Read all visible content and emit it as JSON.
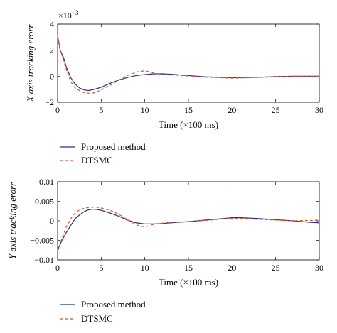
{
  "chart_data": [
    {
      "type": "line",
      "ylabel": "X axis tracking erorr",
      "xlabel": "Time (×100 ms)",
      "exponent_label": "×10",
      "exponent_power": "−3",
      "xlim": [
        0,
        30
      ],
      "ylim": [
        -2,
        4
      ],
      "xticks": [
        0,
        5,
        10,
        15,
        20,
        25,
        30
      ],
      "yticks": [
        -2,
        0,
        2,
        4
      ],
      "ytick_labels": [
        "−2",
        "0",
        "2",
        "4"
      ],
      "grid": false,
      "legend_position": "below",
      "series": [
        {
          "name": "Proposed method",
          "color": "#2b2f8f",
          "dash": "solid",
          "x": [
            0,
            0.3,
            0.7,
            1,
            1.5,
            2,
            2.5,
            3,
            3.5,
            4,
            4.5,
            5,
            6,
            7,
            8,
            9,
            10,
            11,
            12,
            13,
            15,
            17,
            20,
            23,
            25,
            27,
            30
          ],
          "y": [
            3.1,
            2.0,
            1.4,
            0.7,
            -0.1,
            -0.6,
            -0.9,
            -1.05,
            -1.1,
            -1.05,
            -0.95,
            -0.85,
            -0.55,
            -0.3,
            -0.1,
            0.05,
            0.12,
            0.18,
            0.18,
            0.15,
            0.05,
            -0.05,
            -0.12,
            -0.08,
            -0.03,
            0.0,
            0.0
          ]
        },
        {
          "name": "DTSMC",
          "color": "#e0512b",
          "dash": "dashed",
          "x": [
            0,
            0.3,
            0.7,
            1,
            1.5,
            2,
            2.5,
            3,
            3.5,
            4,
            4.5,
            5,
            6,
            7,
            8,
            9,
            9.5,
            10,
            10.5,
            11,
            12,
            13,
            15,
            17,
            20,
            23,
            25,
            27,
            30
          ],
          "y": [
            3.2,
            2.0,
            1.2,
            0.5,
            -0.4,
            -0.9,
            -1.1,
            -1.25,
            -1.3,
            -1.3,
            -1.2,
            -1.05,
            -0.7,
            -0.3,
            0.05,
            0.3,
            0.38,
            0.4,
            0.35,
            0.25,
            0.12,
            0.1,
            0.02,
            -0.08,
            -0.15,
            -0.1,
            -0.05,
            0.0,
            0.0
          ]
        }
      ]
    },
    {
      "type": "line",
      "ylabel": "Y axis tracking erorr",
      "xlabel": "Time (×100 ms)",
      "xlim": [
        0,
        30
      ],
      "ylim": [
        -0.01,
        0.01
      ],
      "xticks": [
        0,
        5,
        10,
        15,
        20,
        25,
        30
      ],
      "yticks": [
        -0.01,
        -0.005,
        0,
        0.005,
        0.01
      ],
      "ytick_labels": [
        "−0.01",
        "−0.005",
        "0",
        "0.005",
        "0.01"
      ],
      "grid": false,
      "legend_position": "below",
      "series": [
        {
          "name": "Proposed method",
          "color": "#2b2f8f",
          "dash": "solid",
          "x": [
            0,
            0.5,
            1,
            1.5,
            2,
            2.5,
            3,
            3.5,
            4,
            4.5,
            5,
            6,
            7,
            8,
            9,
            10,
            11,
            12,
            13,
            15,
            17,
            19,
            20,
            21,
            23,
            25,
            27,
            29,
            30
          ],
          "y": [
            -0.0075,
            -0.005,
            -0.003,
            -0.0012,
            0.0005,
            0.0015,
            0.0023,
            0.0028,
            0.003,
            0.0029,
            0.0027,
            0.002,
            0.0012,
            0.0002,
            -0.0005,
            -0.0008,
            -0.0008,
            -0.0007,
            -0.0005,
            -0.0002,
            0.0002,
            0.0006,
            0.0008,
            0.0008,
            0.0006,
            0.0003,
            0.0,
            -0.0004,
            -0.0005
          ]
        },
        {
          "name": "DTSMC",
          "color": "#e0512b",
          "dash": "dashed",
          "x": [
            0,
            0.5,
            1,
            1.5,
            2,
            2.5,
            3,
            3.5,
            4,
            4.5,
            5,
            6,
            7,
            8,
            9,
            9.5,
            10,
            10.5,
            11,
            12,
            13,
            15,
            17,
            19,
            20,
            21,
            23,
            25,
            27,
            29,
            30
          ],
          "y": [
            -0.0078,
            -0.0045,
            -0.0015,
            0.0005,
            0.002,
            0.0028,
            0.0032,
            0.0034,
            0.0035,
            0.0035,
            0.0033,
            0.0027,
            0.0017,
            0.0003,
            -0.001,
            -0.0014,
            -0.0015,
            -0.0013,
            -0.0009,
            -0.0006,
            -0.0004,
            -0.0002,
            0.0001,
            0.0005,
            0.0006,
            0.0006,
            0.0004,
            0.0002,
            0.0,
            0.0001,
            0.0002
          ]
        }
      ]
    }
  ]
}
